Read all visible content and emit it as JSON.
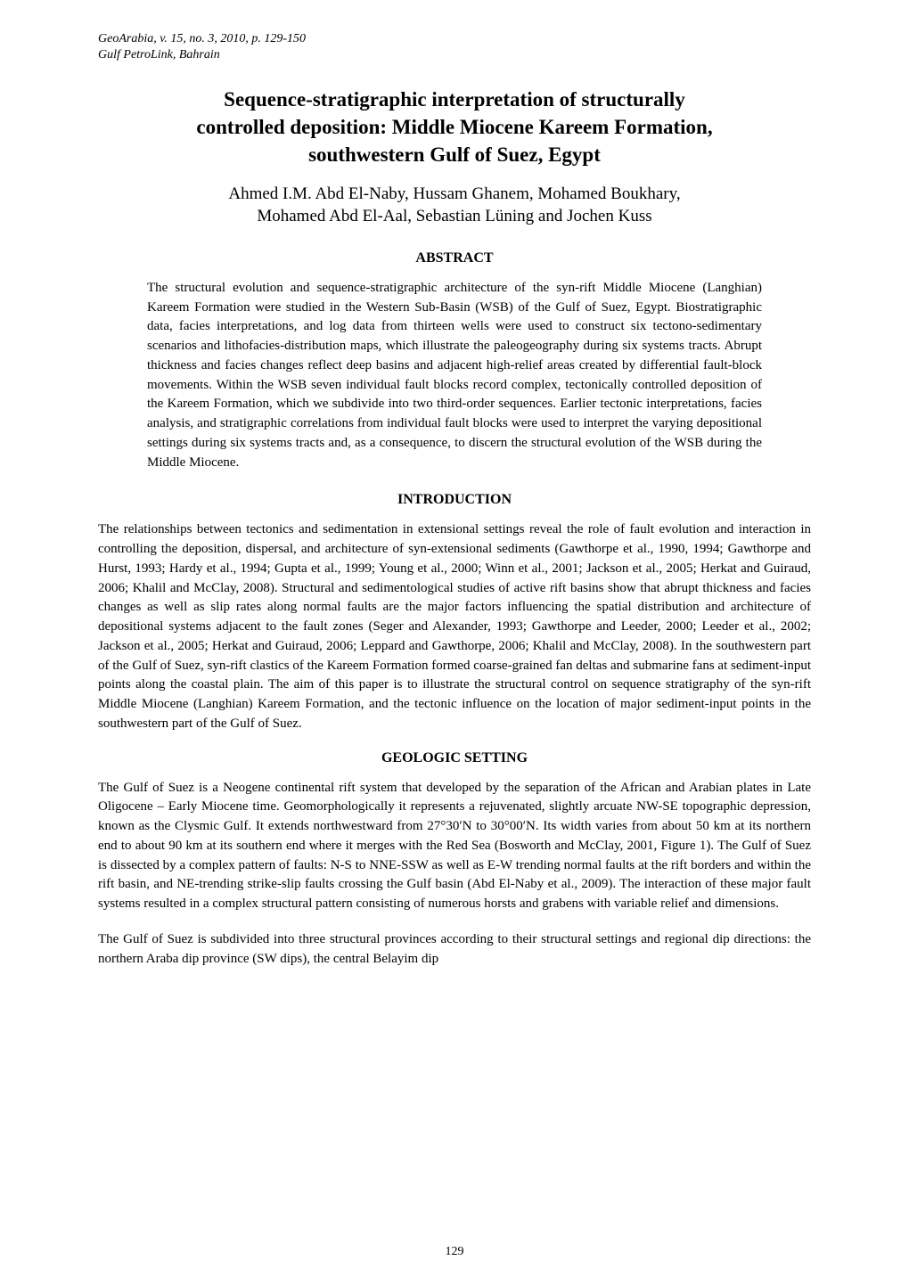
{
  "header": {
    "line1": "GeoArabia, v. 15, no. 3, 2010, p. 129-150",
    "line2": "Gulf PetroLink, Bahrain"
  },
  "title": {
    "line1": "Sequence-stratigraphic interpretation of structurally",
    "line2": "controlled deposition: Middle Miocene Kareem Formation,",
    "line3": "southwestern Gulf of Suez, Egypt"
  },
  "authors": {
    "line1": "Ahmed I.M. Abd El-Naby, Hussam Ghanem, Mohamed Boukhary,",
    "line2": "Mohamed Abd El-Aal, Sebastian Lüning and Jochen Kuss"
  },
  "abstract": {
    "heading": "ABSTRACT",
    "body": "The structural evolution and sequence-stratigraphic architecture of the syn-rift Middle Miocene (Langhian) Kareem Formation were studied in the Western Sub-Basin (WSB) of the Gulf of Suez, Egypt. Biostratigraphic data, facies interpretations, and log data from thirteen wells were used to construct six tectono-sedimentary scenarios and lithofacies-distribution maps, which illustrate the paleogeography during six systems tracts. Abrupt thickness and facies changes reflect deep basins and adjacent high-relief areas created by differential fault-block movements. Within the WSB seven individual fault blocks record complex, tectonically controlled deposition of the Kareem Formation, which we subdivide into two third-order sequences. Earlier tectonic interpretations, facies analysis, and stratigraphic correlations from individual fault blocks were used to interpret the varying depositional settings during six systems tracts and, as a consequence, to discern the structural evolution of the WSB during the Middle Miocene."
  },
  "introduction": {
    "heading": "INTRODUCTION",
    "body": "The relationships between tectonics and sedimentation in extensional settings reveal the role of fault evolution and interaction in controlling the deposition, dispersal, and architecture of syn-extensional sediments (Gawthorpe et al., 1990, 1994; Gawthorpe and Hurst, 1993; Hardy et al., 1994; Gupta et al., 1999; Young et al., 2000; Winn et al., 2001; Jackson et al., 2005; Herkat and Guiraud, 2006; Khalil and McClay, 2008). Structural and sedimentological studies of active rift basins show that abrupt thickness and facies changes as well as slip rates along normal faults are the major factors influencing the spatial distribution and architecture of depositional systems adjacent to the fault zones (Seger and Alexander, 1993; Gawthorpe and Leeder, 2000; Leeder et al., 2002; Jackson et al., 2005; Herkat and Guiraud, 2006; Leppard and Gawthorpe, 2006; Khalil and McClay, 2008). In the southwestern part of the Gulf of Suez, syn-rift clastics of the Kareem Formation formed coarse-grained fan deltas and submarine fans at sediment-input points along the coastal plain. The aim of this paper is to illustrate the structural control on sequence stratigraphy of the syn-rift Middle Miocene (Langhian) Kareem Formation, and the tectonic influence on the location of major sediment-input points in the southwestern part of the Gulf of Suez."
  },
  "geologic": {
    "heading": "GEOLOGIC SETTING",
    "para1": "The Gulf of Suez is a Neogene continental rift system that developed by the separation of the African and Arabian plates in Late Oligocene – Early Miocene time. Geomorphologically it represents a rejuvenated, slightly arcuate NW-SE topographic depression, known as the Clysmic Gulf. It extends northwestward from 27°30′N to 30°00′N. Its width varies from about 50 km at its northern end to about 90 km at its southern end where it merges with the Red Sea (Bosworth and McClay, 2001, Figure 1). The Gulf of Suez is dissected by a complex pattern of faults: N-S to NNE-SSW as well as E-W trending normal faults at the rift borders and within the rift basin, and NE-trending strike-slip faults crossing the Gulf basin (Abd El-Naby et al., 2009). The interaction of these major fault systems resulted in a complex structural pattern consisting of numerous horsts and grabens with variable relief and dimensions.",
    "para2": "The Gulf of Suez is subdivided into three structural provinces according to their structural settings and regional dip directions: the northern Araba dip province (SW dips), the central Belayim dip"
  },
  "pageNumber": "129",
  "colors": {
    "background": "#ffffff",
    "text": "#000000"
  },
  "typography": {
    "body_fontsize": 15,
    "title_fontsize": 23,
    "authors_fontsize": 19,
    "heading_fontsize": 16,
    "header_fontsize": 14,
    "font_family": "Palatino Linotype, Book Antiqua, Palatino, serif"
  }
}
